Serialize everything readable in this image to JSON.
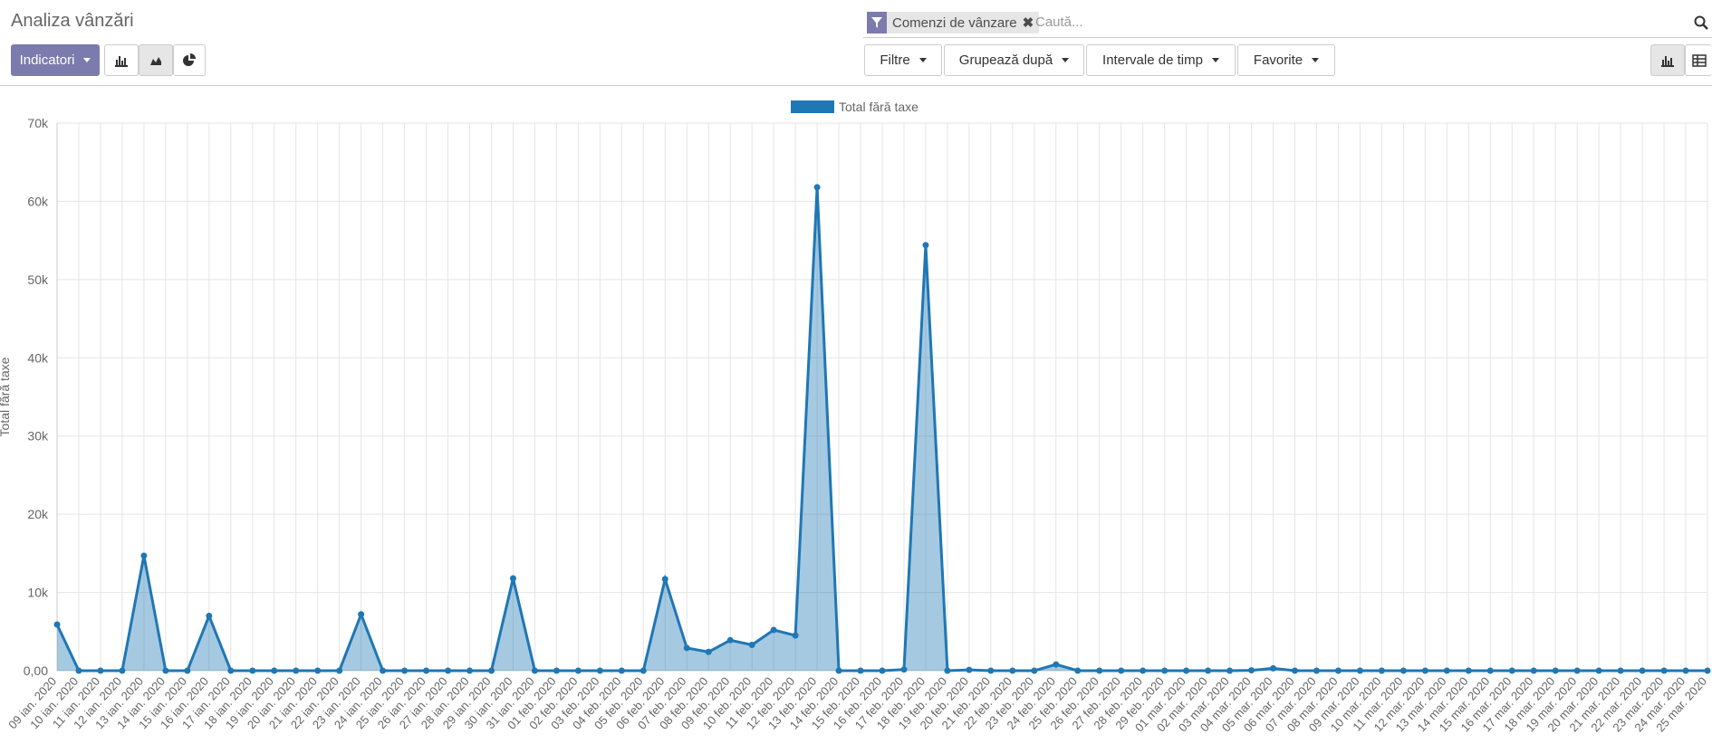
{
  "header": {
    "title": "Analiza vânzări",
    "measures_button": "Indicatori",
    "search": {
      "facet": "Comenzi de vânzare",
      "placeholder": "Caută..."
    },
    "filters": [
      "Filtre",
      "Grupează după",
      "Intervale de timp",
      "Favorite"
    ]
  },
  "chart_data": {
    "type": "area",
    "y_axis_label": "Total fără taxe",
    "categories": [
      "09 ian. 2020",
      "10 ian. 2020",
      "11 ian. 2020",
      "12 ian. 2020",
      "13 ian. 2020",
      "14 ian. 2020",
      "15 ian. 2020",
      "16 ian. 2020",
      "17 ian. 2020",
      "18 ian. 2020",
      "19 ian. 2020",
      "20 ian. 2020",
      "21 ian. 2020",
      "22 ian. 2020",
      "23 ian. 2020",
      "24 ian. 2020",
      "25 ian. 2020",
      "26 ian. 2020",
      "27 ian. 2020",
      "28 ian. 2020",
      "29 ian. 2020",
      "30 ian. 2020",
      "31 ian. 2020",
      "01 feb. 2020",
      "02 feb. 2020",
      "03 feb. 2020",
      "04 feb. 2020",
      "05 feb. 2020",
      "06 feb. 2020",
      "07 feb. 2020",
      "08 feb. 2020",
      "09 feb. 2020",
      "10 feb. 2020",
      "11 feb. 2020",
      "12 feb. 2020",
      "13 feb. 2020",
      "14 feb. 2020",
      "15 feb. 2020",
      "16 feb. 2020",
      "17 feb. 2020",
      "18 feb. 2020",
      "19 feb. 2020",
      "20 feb. 2020",
      "21 feb. 2020",
      "22 feb. 2020",
      "23 feb. 2020",
      "24 feb. 2020",
      "25 feb. 2020",
      "26 feb. 2020",
      "27 feb. 2020",
      "28 feb. 2020",
      "29 feb. 2020",
      "01 mar. 2020",
      "02 mar. 2020",
      "03 mar. 2020",
      "04 mar. 2020",
      "05 mar. 2020",
      "06 mar. 2020",
      "07 mar. 2020",
      "08 mar. 2020",
      "09 mar. 2020",
      "10 mar. 2020",
      "11 mar. 2020",
      "12 mar. 2020",
      "13 mar. 2020",
      "14 mar. 2020",
      "15 mar. 2020",
      "16 mar. 2020",
      "17 mar. 2020",
      "18 mar. 2020",
      "19 mar. 2020",
      "20 mar. 2020",
      "21 mar. 2020",
      "22 mar. 2020",
      "23 mar. 2020",
      "24 mar. 2020",
      "25 mar. 2020"
    ],
    "series": [
      {
        "name": "Total fără taxe",
        "color": "#1f77b4",
        "values": [
          5900,
          0,
          0,
          0,
          14700,
          0,
          0,
          7000,
          0,
          0,
          0,
          0,
          0,
          0,
          7200,
          0,
          0,
          0,
          0,
          0,
          0,
          11800,
          0,
          0,
          0,
          0,
          0,
          0,
          11700,
          2900,
          2400,
          3900,
          3300,
          5200,
          4500,
          61800,
          0,
          0,
          0,
          150,
          54400,
          0,
          100,
          0,
          0,
          0,
          800,
          0,
          0,
          0,
          0,
          0,
          0,
          0,
          0,
          50,
          300,
          0,
          0,
          0,
          0,
          0,
          0,
          0,
          0,
          0,
          0,
          0,
          0,
          0,
          0,
          0,
          0,
          0,
          0,
          0,
          0
        ]
      }
    ],
    "ylim": [
      0,
      70000
    ],
    "yticks": [
      {
        "value": 0,
        "label": "0,00"
      },
      {
        "value": 10000,
        "label": "10k"
      },
      {
        "value": 20000,
        "label": "20k"
      },
      {
        "value": 30000,
        "label": "30k"
      },
      {
        "value": 40000,
        "label": "40k"
      },
      {
        "value": 50000,
        "label": "50k"
      },
      {
        "value": 60000,
        "label": "60k"
      },
      {
        "value": 70000,
        "label": "70k"
      }
    ],
    "grid": true,
    "legend": "top"
  }
}
